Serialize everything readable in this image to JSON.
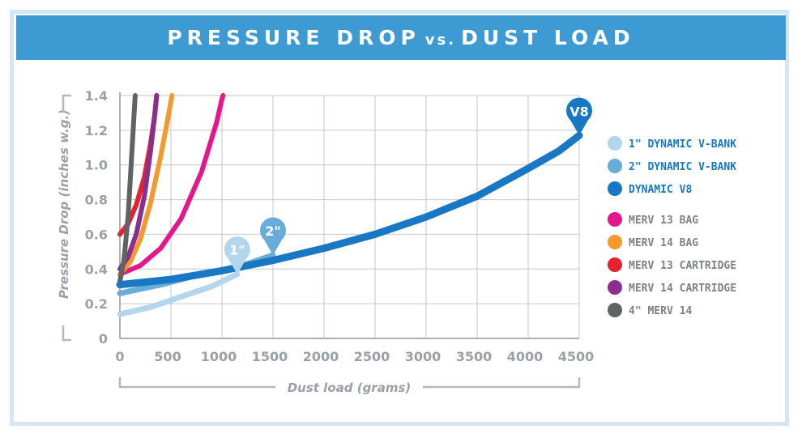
{
  "header": {
    "title_part1": "PRESSURE DROP",
    "title_vs": "vs.",
    "title_part2": "DUST LOAD"
  },
  "colors": {
    "banner": "#3e9ad3",
    "border": "#d3e6f2",
    "grid": "#c4c6c8",
    "axis_text": "#9aa0a6"
  },
  "chart_data": {
    "type": "line",
    "xlabel": "Dust load (grams)",
    "ylabel": "Pressure Drop (inches w.g.)",
    "xlim": [
      0,
      4500
    ],
    "ylim": [
      0,
      1.4
    ],
    "x_ticks": [
      0,
      500,
      1000,
      1500,
      2000,
      2500,
      3000,
      3500,
      4000,
      4500
    ],
    "x_tick_labels": [
      "0",
      "500",
      "1000",
      "1500",
      "2000",
      "2500",
      "3000",
      "3500",
      "4000",
      "4500"
    ],
    "y_ticks": [
      0,
      0.2,
      0.4,
      0.6,
      0.8,
      1.0,
      1.2,
      1.4
    ],
    "y_tick_labels": [
      "0",
      "0.2",
      "0.4",
      "0.6",
      "0.8",
      "1.0",
      "1.2",
      "1.4"
    ],
    "grid": true,
    "legend_position": "right",
    "series": [
      {
        "name": "1\" DYNAMIC V-BANK",
        "color": "#b3d6ec",
        "pin": "1\"",
        "points": [
          [
            0,
            0.14
          ],
          [
            300,
            0.18
          ],
          [
            600,
            0.24
          ],
          [
            900,
            0.3
          ],
          [
            1150,
            0.37
          ]
        ]
      },
      {
        "name": "2\" DYNAMIC V-BANK",
        "color": "#68add9",
        "pin": "2\"",
        "points": [
          [
            0,
            0.26
          ],
          [
            400,
            0.31
          ],
          [
            800,
            0.37
          ],
          [
            1200,
            0.42
          ],
          [
            1500,
            0.48
          ]
        ]
      },
      {
        "name": "DYNAMIC V8",
        "color": "#1878c4",
        "pin": "V8",
        "points": [
          [
            0,
            0.31
          ],
          [
            500,
            0.34
          ],
          [
            1000,
            0.39
          ],
          [
            1500,
            0.45
          ],
          [
            2000,
            0.52
          ],
          [
            2500,
            0.6
          ],
          [
            3000,
            0.7
          ],
          [
            3500,
            0.82
          ],
          [
            4000,
            0.98
          ],
          [
            4300,
            1.08
          ],
          [
            4500,
            1.17
          ]
        ]
      },
      {
        "name": "MERV 13 BAG",
        "color": "#e5178c",
        "points": [
          [
            0,
            0.37
          ],
          [
            200,
            0.42
          ],
          [
            400,
            0.52
          ],
          [
            600,
            0.69
          ],
          [
            800,
            0.96
          ],
          [
            950,
            1.25
          ],
          [
            1000,
            1.38
          ],
          [
            1010,
            1.4
          ]
        ]
      },
      {
        "name": "MERV 14 BAG",
        "color": "#f39a2c",
        "points": [
          [
            0,
            0.37
          ],
          [
            100,
            0.44
          ],
          [
            200,
            0.57
          ],
          [
            300,
            0.78
          ],
          [
            400,
            1.05
          ],
          [
            480,
            1.3
          ],
          [
            510,
            1.4
          ]
        ]
      },
      {
        "name": "MERV 13 CARTRIDGE",
        "color": "#e52230",
        "points": [
          [
            0,
            0.6
          ],
          [
            80,
            0.66
          ],
          [
            160,
            0.77
          ],
          [
            240,
            0.93
          ],
          [
            300,
            1.12
          ],
          [
            340,
            1.28
          ],
          [
            360,
            1.4
          ]
        ]
      },
      {
        "name": "MERV 14 CARTRIDGE",
        "color": "#8b2f8e",
        "points": [
          [
            0,
            0.4
          ],
          [
            80,
            0.47
          ],
          [
            160,
            0.6
          ],
          [
            240,
            0.82
          ],
          [
            300,
            1.08
          ],
          [
            340,
            1.28
          ],
          [
            360,
            1.4
          ]
        ]
      },
      {
        "name": "4\" MERV 14",
        "color": "#606264",
        "points": [
          [
            0,
            0.33
          ],
          [
            40,
            0.45
          ],
          [
            80,
            0.7
          ],
          [
            110,
            1.0
          ],
          [
            140,
            1.3
          ],
          [
            150,
            1.4
          ]
        ]
      }
    ]
  }
}
